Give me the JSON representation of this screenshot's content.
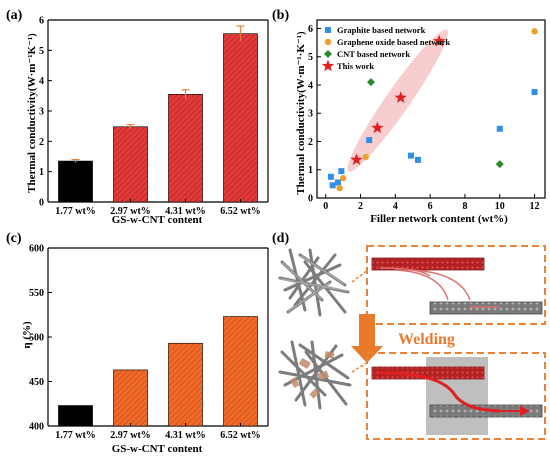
{
  "panels": {
    "a": "(a)",
    "b": "(b)",
    "c": "(c)",
    "d": "(d)"
  },
  "chart_data": [
    {
      "id": "a",
      "type": "bar",
      "categories": [
        "1.77 wt%",
        "2.97 wt%",
        "4.31 wt%",
        "6.52 wt%"
      ],
      "values": [
        1.35,
        2.48,
        3.55,
        5.55
      ],
      "errors": [
        0.05,
        0.07,
        0.15,
        0.25
      ],
      "colors": [
        "#000000",
        "#e03a3a",
        "#e03a3a",
        "#e03a3a"
      ],
      "error_color": "#e8833a",
      "xlabel": "GS-w-CNT content",
      "ylabel": "Thermal conductivity(W·m⁻¹K⁻¹)",
      "ylim": [
        0,
        6
      ],
      "yticks": [
        "0",
        "1",
        "2",
        "3",
        "4",
        "5",
        "6"
      ]
    },
    {
      "id": "b",
      "type": "scatter",
      "xlabel": "Filler network content (wt%)",
      "ylabel": "Thermal conductivity(W·m⁻¹·K⁻¹)",
      "xlim": [
        -0.5,
        12.6
      ],
      "ylim": [
        0,
        6.3
      ],
      "xticks": [
        "0",
        "2",
        "4",
        "6",
        "8",
        "10",
        "12"
      ],
      "yticks": [
        "0",
        "1",
        "2",
        "3",
        "4",
        "5",
        "6"
      ],
      "legend_position": "top-left",
      "series": [
        {
          "name": "Graphite based network",
          "marker": "square",
          "color": "#2f8fe8",
          "x": [
            0.3,
            0.4,
            0.7,
            0.9,
            2.5,
            4.9,
            5.3,
            10.0,
            12.0
          ],
          "y": [
            0.75,
            0.45,
            0.55,
            0.95,
            2.05,
            1.5,
            1.35,
            2.45,
            3.75
          ]
        },
        {
          "name": "Graphene oxide based network",
          "marker": "circle",
          "color": "#f0a030",
          "x": [
            0.8,
            1.0,
            2.3,
            12.0
          ],
          "y": [
            0.35,
            0.7,
            1.45,
            5.9
          ]
        },
        {
          "name": "CNT based network",
          "marker": "diamond",
          "color": "#2a8a2a",
          "x": [
            2.6,
            10.0
          ],
          "y": [
            4.1,
            1.2
          ]
        },
        {
          "name": "This work",
          "marker": "star",
          "color": "#e02020",
          "x": [
            1.77,
            2.97,
            4.31,
            6.52
          ],
          "y": [
            1.35,
            2.48,
            3.55,
            5.55
          ]
        }
      ],
      "highlight_color": "#f4b8b8"
    },
    {
      "id": "c",
      "type": "bar",
      "categories": [
        "1.77 wt%",
        "2.97 wt%",
        "4.31 wt%",
        "6.52 wt%"
      ],
      "values": [
        423,
        463,
        493,
        523
      ],
      "colors": [
        "#000000",
        "#f06a2a",
        "#f06a2a",
        "#f06a2a"
      ],
      "xlabel": "GS-w-CNT content",
      "ylabel": "η (%)",
      "ylim": [
        400,
        600
      ],
      "yticks": [
        "400",
        "450",
        "500",
        "550",
        "600"
      ]
    }
  ],
  "schematic": {
    "welding_label": "Welding",
    "arrow_color": "#e87a2c",
    "box_color": "#e8833a"
  }
}
